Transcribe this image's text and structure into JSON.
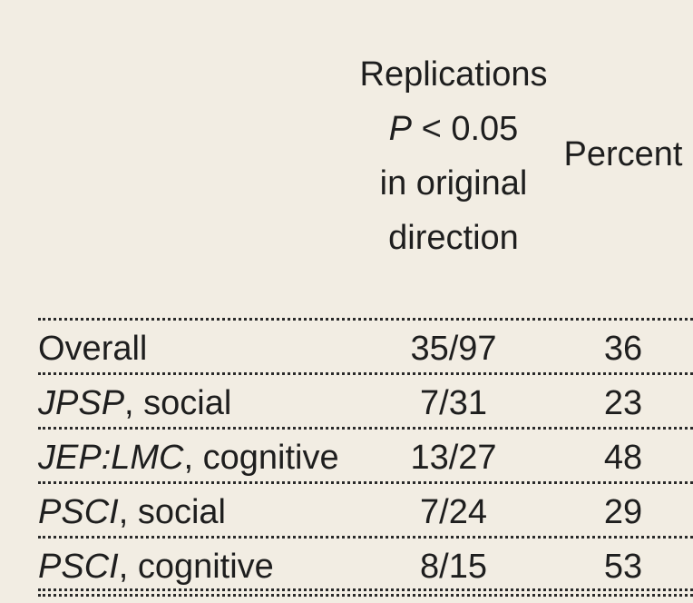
{
  "header": {
    "replications_lines": [
      "Replications",
      "P",
      "< 0.05",
      "in original",
      "direction"
    ],
    "percent": "Percent"
  },
  "rows": [
    {
      "label_italic": "",
      "label_rest": "Overall",
      "count": "35/97",
      "percent": "36"
    },
    {
      "label_italic": "JPSP",
      "label_rest": ", social",
      "count": "7/31",
      "percent": "23"
    },
    {
      "label_italic": "JEP:LMC",
      "label_rest": ", cognitive",
      "count": "13/27",
      "percent": "48"
    },
    {
      "label_italic": "PSCI",
      "label_rest": ", social",
      "count": "7/24",
      "percent": "29"
    },
    {
      "label_italic": "PSCI",
      "label_rest": ", cognitive",
      "count": "8/15",
      "percent": "53"
    }
  ]
}
